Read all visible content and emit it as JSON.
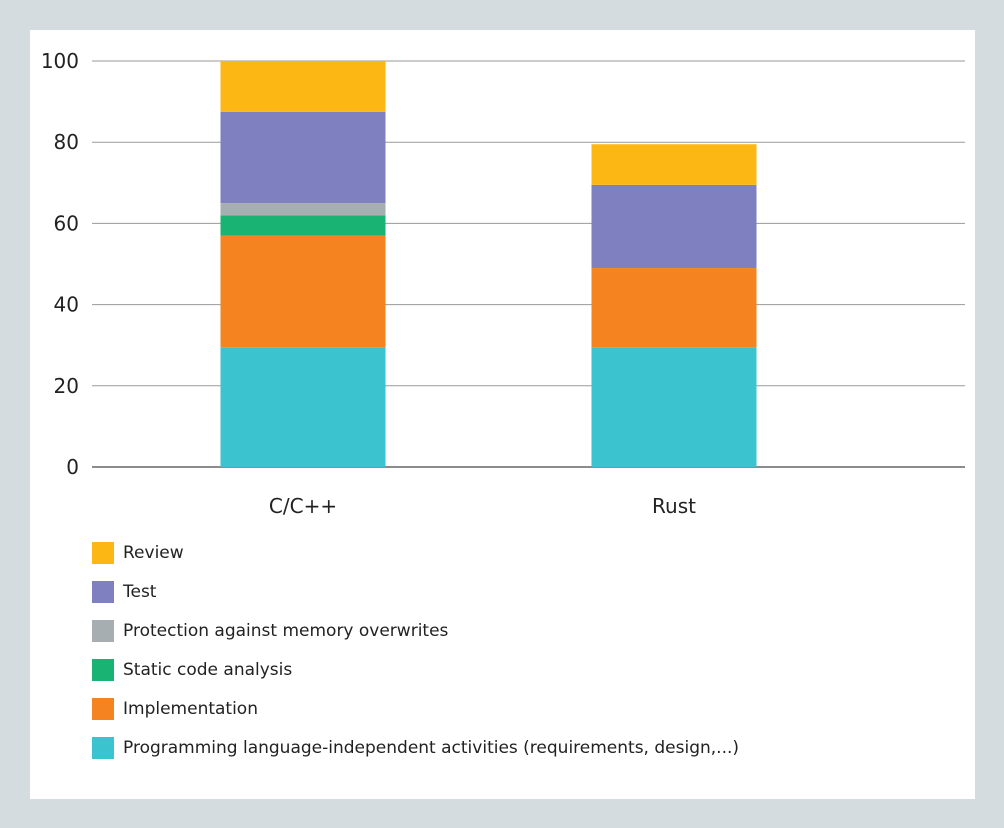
{
  "chart_data": {
    "type": "bar",
    "stacked": true,
    "categories": [
      "C/C++",
      "Rust"
    ],
    "series": [
      {
        "name": "Programming language-independent activities (requirements, design,...)",
        "color": "#3bc3cf",
        "values": [
          29.5,
          29.5
        ]
      },
      {
        "name": "Implementation",
        "color": "#f5831f",
        "values": [
          27.5,
          19.5
        ]
      },
      {
        "name": "Static code analysis",
        "color": "#19b374",
        "values": [
          5,
          0
        ]
      },
      {
        "name": "Protection against memory overwrites",
        "color": "#a7aeb2",
        "values": [
          3,
          0
        ]
      },
      {
        "name": "Test",
        "color": "#7f80bf",
        "values": [
          22.5,
          20.5
        ]
      },
      {
        "name": "Review",
        "color": "#fdb714",
        "values": [
          12.5,
          10
        ]
      }
    ],
    "yticks": [
      "0",
      "20",
      "40",
      "60",
      "80",
      "100"
    ],
    "ylim": [
      0,
      100
    ],
    "grid": true,
    "legend_placement": "bottom-left",
    "legend_order": [
      "Review",
      "Test",
      "Protection against memory overwrites",
      "Static code analysis",
      "Implementation",
      "Programming language-independent activities (requirements, design,...)"
    ]
  }
}
